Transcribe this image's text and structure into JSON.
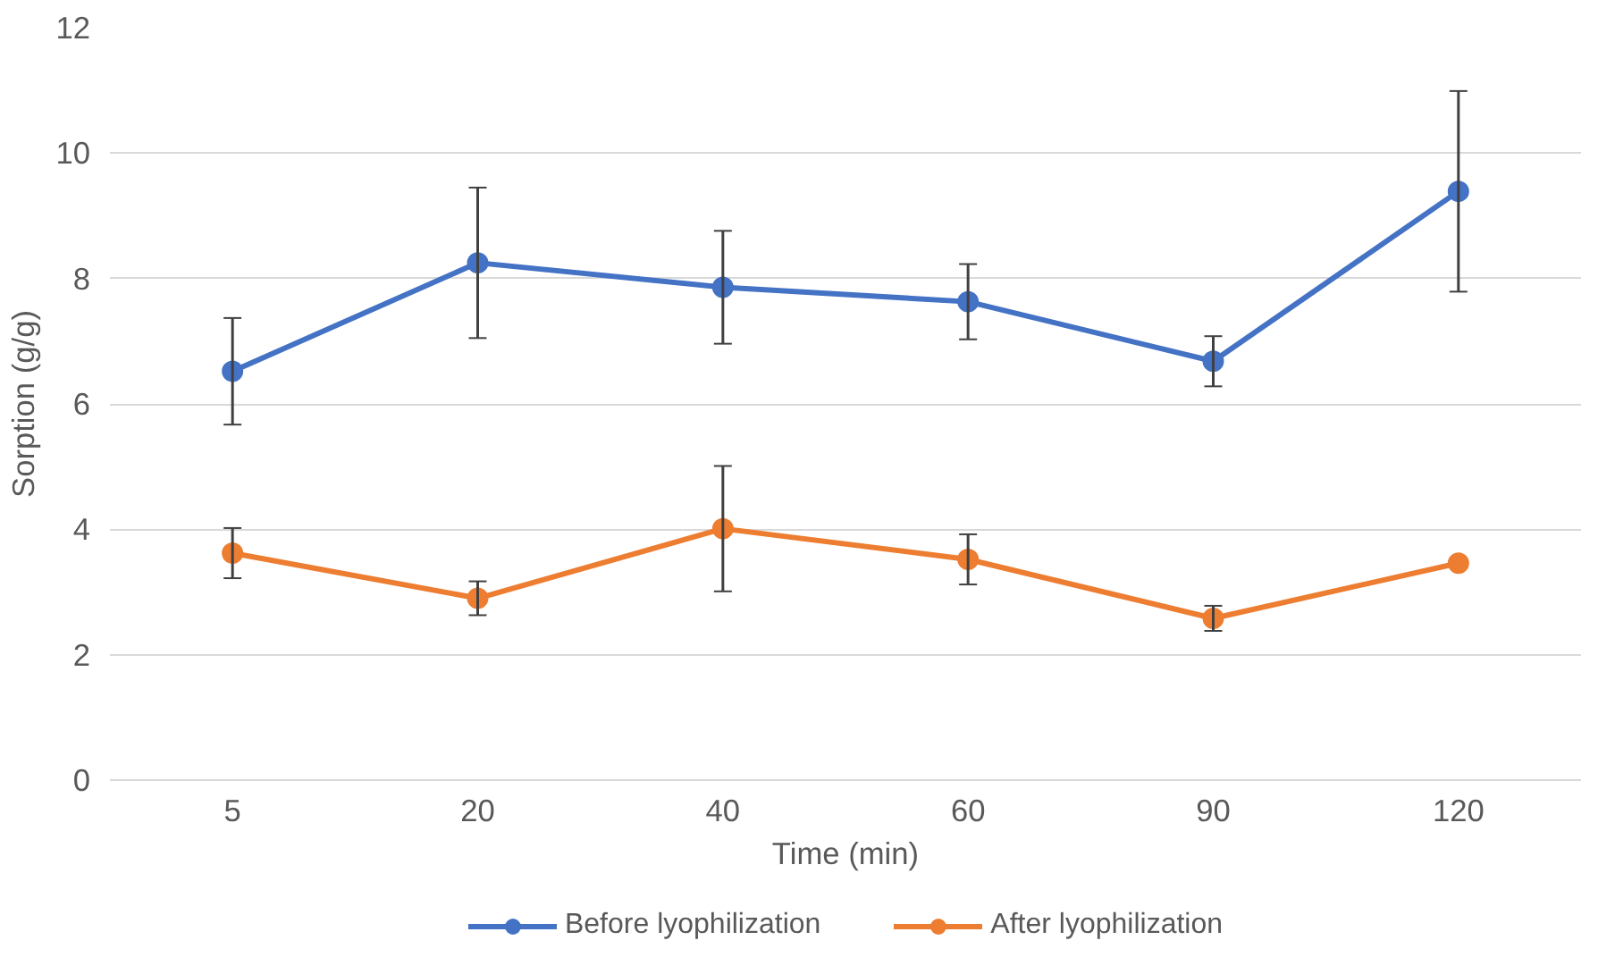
{
  "chart_data": {
    "type": "line",
    "xlabel": "Time (min)",
    "ylabel": "Sorption (g/g)",
    "categories": [
      "5",
      "20",
      "40",
      "60",
      "90",
      "120"
    ],
    "series": [
      {
        "name": "Before lyophilization",
        "color": "#4472c4",
        "values": [
          6.52,
          8.25,
          7.86,
          7.63,
          6.68,
          9.39
        ],
        "errors": [
          0.85,
          1.2,
          0.9,
          0.6,
          0.4,
          1.6
        ]
      },
      {
        "name": "After lyophilization",
        "color": "#ed7d31",
        "values": [
          3.62,
          2.9,
          4.01,
          3.52,
          2.58,
          3.46
        ],
        "errors": [
          0.4,
          0.27,
          1.0,
          0.4,
          0.2,
          null
        ]
      }
    ],
    "ylim": [
      0,
      12
    ],
    "yticks": [
      0,
      2,
      4,
      6,
      8,
      10,
      12
    ],
    "grid": "y",
    "legend": "bottom",
    "marker": "circle",
    "line_style": "solid"
  }
}
